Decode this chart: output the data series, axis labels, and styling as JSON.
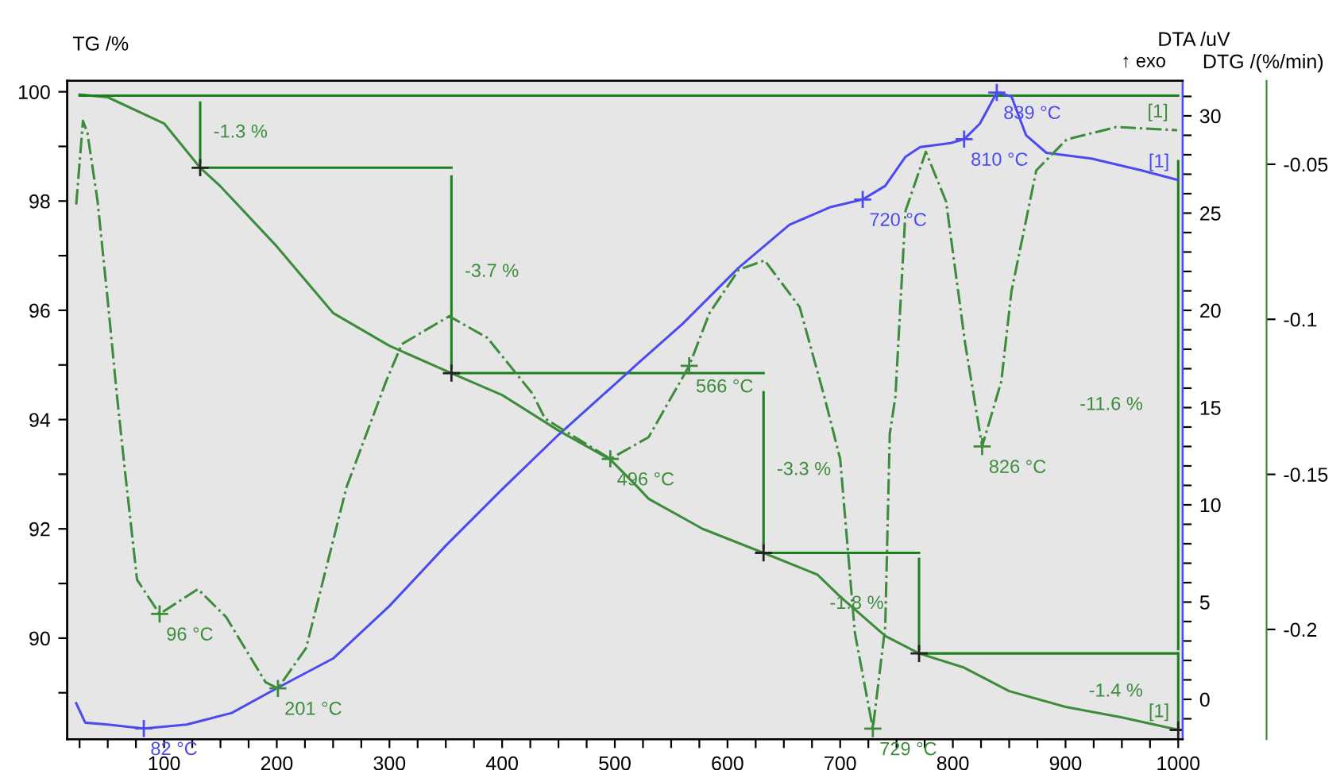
{
  "chart_data": {
    "type": "line",
    "ylabel": "TG /%",
    "y2label": "DTA /uV",
    "y3label": "DTG /(%/min)",
    "xlim": [
      14,
      1004
    ],
    "xticks": [
      100,
      200,
      300,
      400,
      500,
      600,
      700,
      800,
      900,
      1000,
      {
        "value": 25,
        "label": null
      },
      {
        "value": 50,
        "label": null
      },
      {
        "value": 75,
        "label": null
      },
      {
        "value": 125,
        "label": null
      },
      {
        "value": 150,
        "label": null
      },
      {
        "value": 175,
        "label": null
      },
      {
        "value": 225,
        "label": null
      },
      {
        "value": 250,
        "label": null
      },
      {
        "value": 275,
        "label": null
      },
      {
        "value": 325,
        "label": null
      },
      {
        "value": 350,
        "label": null
      },
      {
        "value": 375,
        "label": null
      },
      {
        "value": 425,
        "label": null
      },
      {
        "value": 450,
        "label": null
      },
      {
        "value": 475,
        "label": null
      },
      {
        "value": 525,
        "label": null
      },
      {
        "value": 550,
        "label": null
      },
      {
        "value": 575,
        "label": null
      },
      {
        "value": 625,
        "label": null
      },
      {
        "value": 650,
        "label": null
      },
      {
        "value": 675,
        "label": null
      },
      {
        "value": 725,
        "label": null
      },
      {
        "value": 750,
        "label": null
      },
      {
        "value": 775,
        "label": null
      },
      {
        "value": 825,
        "label": null
      },
      {
        "value": 850,
        "label": null
      },
      {
        "value": 875,
        "label": null
      },
      {
        "value": 925,
        "label": null
      },
      {
        "value": 950,
        "label": null
      },
      {
        "value": 975,
        "label": null
      }
    ],
    "ylim": [
      88.15,
      100.2
    ],
    "yticks": [
      90,
      92,
      94,
      96,
      98,
      100,
      {
        "value": 89,
        "label": null
      },
      {
        "value": 91,
        "label": null
      },
      {
        "value": 93,
        "label": null
      },
      {
        "value": 95,
        "label": null
      },
      {
        "value": 97,
        "label": null
      },
      {
        "value": 99,
        "label": null
      }
    ],
    "y2lim": [
      -2.05,
      31.8
    ],
    "y2ticks": [
      0,
      5,
      10,
      15,
      20,
      25,
      30,
      {
        "value": -1,
        "label": null
      },
      {
        "value": 1,
        "label": null
      },
      {
        "value": 2,
        "label": null
      },
      {
        "value": 3,
        "label": null
      },
      {
        "value": 4,
        "label": null
      },
      {
        "value": 6,
        "label": null
      },
      {
        "value": 7,
        "label": null
      },
      {
        "value": 8,
        "label": null
      },
      {
        "value": 9,
        "label": null
      },
      {
        "value": 11,
        "label": null
      },
      {
        "value": 12,
        "label": null
      },
      {
        "value": 13,
        "label": null
      },
      {
        "value": 14,
        "label": null
      },
      {
        "value": 16,
        "label": null
      },
      {
        "value": 17,
        "label": null
      },
      {
        "value": 18,
        "label": null
      },
      {
        "value": 19,
        "label": null
      },
      {
        "value": 21,
        "label": null
      },
      {
        "value": 22,
        "label": null
      },
      {
        "value": 23,
        "label": null
      },
      {
        "value": 24,
        "label": null
      },
      {
        "value": 26,
        "label": null
      },
      {
        "value": 27,
        "label": null
      },
      {
        "value": 28,
        "label": null
      },
      {
        "value": 29,
        "label": null
      },
      {
        "value": 31,
        "label": null
      }
    ],
    "y3lim": [
      -0.2354,
      -0.0231
    ],
    "y3ticks": [
      -0.05,
      -0.1,
      -0.15,
      -0.2
    ],
    "grid": false,
    "legend": false,
    "series": [
      {
        "axis": "y",
        "color": "#3c8c3c",
        "line_style": "solid",
        "x": [
          25,
          50,
          100,
          132,
          150,
          200,
          250,
          300,
          355,
          400,
          450,
          496,
          521,
          530,
          578,
          632,
          680,
          700,
          740,
          770,
          810,
          850,
          900,
          950,
          1000
        ],
        "values": [
          99.95,
          99.9,
          99.42,
          98.61,
          98.27,
          97.17,
          95.95,
          95.35,
          94.85,
          94.45,
          93.8,
          93.27,
          92.75,
          92.55,
          92.0,
          91.56,
          91.16,
          90.76,
          90.04,
          89.72,
          89.46,
          89.03,
          88.74,
          88.55,
          88.32
        ]
      },
      {
        "axis": "y2",
        "color": "#4b4bf0",
        "line_style": "solid",
        "x": [
          22,
          30,
          50,
          82,
          120,
          160,
          201,
          250,
          300,
          350,
          400,
          450,
          500,
          521,
          560,
          610,
          655,
          691,
          720,
          740,
          758,
          771,
          798,
          810,
          824,
          839,
          852,
          865,
          883,
          923,
          967,
          1000
        ],
        "values": [
          -0.2,
          -1.2,
          -1.3,
          -1.5,
          -1.3,
          -0.7,
          0.6,
          2.1,
          4.8,
          7.9,
          10.8,
          13.6,
          16.2,
          17.3,
          19.3,
          22.2,
          24.4,
          25.3,
          25.7,
          26.4,
          27.9,
          28.4,
          28.6,
          28.8,
          29.6,
          31.2,
          31.0,
          29.0,
          28.1,
          27.8,
          27.2,
          26.7
        ]
      },
      {
        "axis": "y3",
        "color": "#3c8c3c",
        "line_style": "dashed",
        "x": [
          22,
          28,
          32,
          41,
          50,
          58,
          65,
          76,
          96,
          130,
          155,
          190,
          201,
          226,
          262,
          297,
          311,
          353,
          387,
          427,
          438,
          496,
          530,
          566,
          584,
          610,
          633,
          664,
          686,
          700,
          713,
          729,
          740,
          744,
          749,
          758,
          776,
          794,
          811,
          826,
          843,
          852,
          874,
          901,
          945,
          999
        ],
        "values": [
          -0.063,
          -0.036,
          -0.04,
          -0.062,
          -0.094,
          -0.124,
          -0.148,
          -0.184,
          -0.195,
          -0.187,
          -0.196,
          -0.217,
          -0.219,
          -0.206,
          -0.154,
          -0.12,
          -0.108,
          -0.099,
          -0.106,
          -0.124,
          -0.132,
          -0.145,
          -0.138,
          -0.115,
          -0.098,
          -0.084,
          -0.081,
          -0.096,
          -0.125,
          -0.145,
          -0.201,
          -0.232,
          -0.199,
          -0.137,
          -0.125,
          -0.065,
          -0.046,
          -0.062,
          -0.108,
          -0.141,
          -0.12,
          -0.091,
          -0.052,
          -0.042,
          -0.038,
          -0.039
        ]
      },
      {
        "axis": "y",
        "color": "#1a801a",
        "line_style": "solid",
        "x": [
          25,
          1000
        ],
        "values": [
          99.93,
          99.93
        ]
      },
      {
        "axis": "y",
        "color": "#1a801a",
        "line_style": "solid",
        "x": [
          132,
          355
        ],
        "values": [
          98.61,
          98.61
        ]
      },
      {
        "axis": "y",
        "color": "#1a801a",
        "line_style": "solid",
        "x": [
          355,
          632
        ],
        "values": [
          94.85,
          94.85
        ]
      },
      {
        "axis": "y",
        "color": "#1a801a",
        "line_style": "solid",
        "x": [
          632,
          770
        ],
        "values": [
          91.56,
          91.56
        ]
      },
      {
        "axis": "y",
        "color": "#1a801a",
        "line_style": "solid",
        "x": [
          770,
          1000
        ],
        "values": [
          89.72,
          89.72
        ]
      },
      {
        "axis": "y",
        "color": "#1a801a",
        "line_style": "solid",
        "x": [
          132,
          132
        ],
        "values": [
          99.8,
          98.7
        ]
      },
      {
        "axis": "y",
        "color": "#1a801a",
        "line_style": "solid",
        "x": [
          355,
          355
        ],
        "values": [
          98.45,
          94.95
        ]
      },
      {
        "axis": "y",
        "color": "#1a801a",
        "line_style": "solid",
        "x": [
          632,
          632
        ],
        "values": [
          94.5,
          91.65
        ]
      },
      {
        "axis": "y",
        "color": "#1a801a",
        "line_style": "solid",
        "x": [
          770,
          770
        ],
        "values": [
          91.45,
          89.8
        ]
      },
      {
        "axis": "y",
        "color": "#1a801a",
        "line_style": "solid",
        "x": [
          1000,
          1000
        ],
        "values": [
          98.73,
          89.8
        ]
      },
      {
        "axis": "y",
        "color": "#1a801a",
        "line_style": "solid",
        "x": [
          1000,
          1000
        ],
        "values": [
          89.72,
          88.32
        ]
      },
      {
        "type": "scatter",
        "axis": "y",
        "color": "#222222",
        "marker": "cross",
        "x": [
          132,
          355,
          632,
          770,
          1000
        ],
        "values": [
          98.61,
          94.85,
          91.56,
          89.72,
          88.32
        ]
      },
      {
        "type": "scatter",
        "axis": "y2",
        "color": "#4b4bf0",
        "marker": "cross",
        "x": [
          82,
          720,
          810,
          839
        ],
        "values": [
          -1.5,
          25.7,
          28.8,
          31.2
        ]
      },
      {
        "type": "scatter",
        "axis": "y3",
        "color": "#3c8c3c",
        "marker": "cross",
        "x": [
          96,
          201,
          496,
          566,
          729,
          826
        ],
        "values": [
          -0.195,
          -0.219,
          -0.145,
          -0.115,
          -0.232,
          -0.141
        ]
      }
    ],
    "annotations": [
      "-1.3 %",
      "-3.7 %",
      "-3.3 %",
      "-1.8 %",
      "-11.6 %",
      "-1.4 %",
      "82 °C",
      "720 °C",
      "810 °C",
      "839 °C",
      "96 °C",
      "201 °C",
      "496 °C",
      "566 °C",
      "729 °C",
      "826 °C",
      "[1]",
      "[1]",
      "[1]",
      "↑ exo"
    ]
  }
}
